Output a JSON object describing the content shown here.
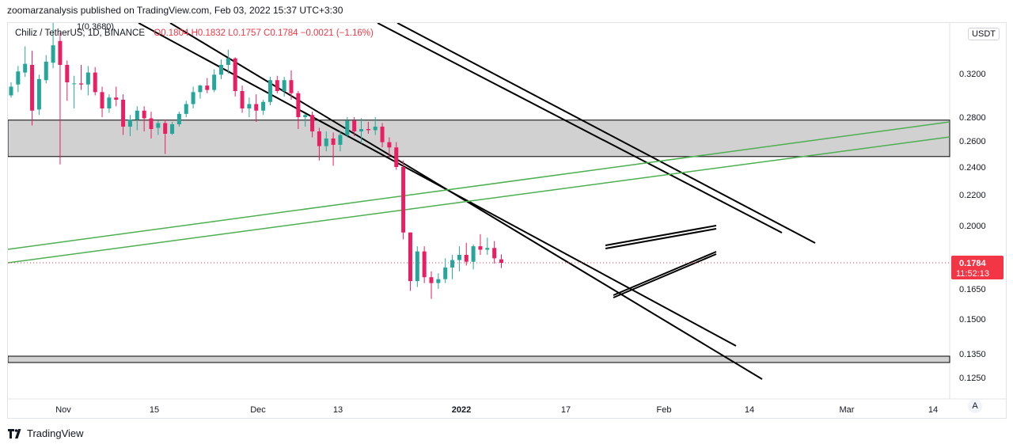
{
  "header": {
    "publish_line": "zoomarzanalysis published on TradingView.com, Feb 03, 2022 15:37 UTC+3:30"
  },
  "legend": {
    "symbol": "Chiliz / TetherUS, 1D, BINANCE",
    "open": "O0.1804",
    "high": "H0.1832",
    "low": "L0.1757",
    "close": "C0.1784",
    "change": "−0.0021 (−1.16%)"
  },
  "marker_label": "1(0.3680)",
  "currency_button": "USDT",
  "axis_mode": "A",
  "footer": {
    "brand": "TradingView"
  },
  "colors": {
    "up": "#26a69a",
    "down": "#e91e63",
    "zone": "#d1d1d1",
    "trend_black": "#000000",
    "trend_green": "#4caf50",
    "price_tag": "#f23645"
  },
  "chart_data": {
    "type": "candlestick",
    "y_axis": {
      "labels": [
        "0.3200",
        "0.2800",
        "0.2600",
        "0.2400",
        "0.2200",
        "0.2000",
        "0.1650",
        "0.1500",
        "0.1350",
        "0.1250"
      ],
      "top_label": "0"
    },
    "x_axis": {
      "labels": [
        "Nov",
        "15",
        "Dec",
        "13",
        "2022",
        "17",
        "Feb",
        "14",
        "Mar",
        "14"
      ]
    },
    "last_price": {
      "value": "0.1784",
      "countdown": "11:52:13"
    },
    "zones": [
      {
        "from": 0.248,
        "to": 0.2775
      },
      {
        "from": 0.1315,
        "to": 0.134
      }
    ],
    "candles": [
      {
        "o": 0.3,
        "h": 0.312,
        "l": 0.298,
        "c": 0.308
      },
      {
        "o": 0.31,
        "h": 0.327,
        "l": 0.303,
        "c": 0.322
      },
      {
        "o": 0.321,
        "h": 0.345,
        "l": 0.317,
        "c": 0.329
      },
      {
        "o": 0.328,
        "h": 0.341,
        "l": 0.273,
        "c": 0.286
      },
      {
        "o": 0.287,
        "h": 0.319,
        "l": 0.282,
        "c": 0.315
      },
      {
        "o": 0.314,
        "h": 0.337,
        "l": 0.311,
        "c": 0.331
      },
      {
        "o": 0.33,
        "h": 0.368,
        "l": 0.325,
        "c": 0.346
      },
      {
        "o": 0.35,
        "h": 0.358,
        "l": 0.242,
        "c": 0.328
      },
      {
        "o": 0.328,
        "h": 0.332,
        "l": 0.295,
        "c": 0.312
      },
      {
        "o": 0.311,
        "h": 0.318,
        "l": 0.288,
        "c": 0.311
      },
      {
        "o": 0.311,
        "h": 0.328,
        "l": 0.305,
        "c": 0.31
      },
      {
        "o": 0.31,
        "h": 0.327,
        "l": 0.3,
        "c": 0.321
      },
      {
        "o": 0.321,
        "h": 0.326,
        "l": 0.3,
        "c": 0.303
      },
      {
        "o": 0.303,
        "h": 0.308,
        "l": 0.28,
        "c": 0.288
      },
      {
        "o": 0.288,
        "h": 0.301,
        "l": 0.284,
        "c": 0.298
      },
      {
        "o": 0.298,
        "h": 0.308,
        "l": 0.29,
        "c": 0.296
      },
      {
        "o": 0.296,
        "h": 0.301,
        "l": 0.265,
        "c": 0.272
      },
      {
        "o": 0.272,
        "h": 0.282,
        "l": 0.264,
        "c": 0.278
      },
      {
        "o": 0.278,
        "h": 0.29,
        "l": 0.269,
        "c": 0.286
      },
      {
        "o": 0.286,
        "h": 0.29,
        "l": 0.268,
        "c": 0.279
      },
      {
        "o": 0.279,
        "h": 0.285,
        "l": 0.262,
        "c": 0.27
      },
      {
        "o": 0.271,
        "h": 0.277,
        "l": 0.265,
        "c": 0.275
      },
      {
        "o": 0.275,
        "h": 0.278,
        "l": 0.25,
        "c": 0.266
      },
      {
        "o": 0.266,
        "h": 0.276,
        "l": 0.265,
        "c": 0.274
      },
      {
        "o": 0.274,
        "h": 0.285,
        "l": 0.272,
        "c": 0.283
      },
      {
        "o": 0.283,
        "h": 0.295,
        "l": 0.28,
        "c": 0.292
      },
      {
        "o": 0.292,
        "h": 0.308,
        "l": 0.288,
        "c": 0.303
      },
      {
        "o": 0.303,
        "h": 0.31,
        "l": 0.297,
        "c": 0.309
      },
      {
        "o": 0.309,
        "h": 0.316,
        "l": 0.302,
        "c": 0.305
      },
      {
        "o": 0.305,
        "h": 0.324,
        "l": 0.303,
        "c": 0.319
      },
      {
        "o": 0.319,
        "h": 0.333,
        "l": 0.315,
        "c": 0.328
      },
      {
        "o": 0.328,
        "h": 0.342,
        "l": 0.32,
        "c": 0.334
      },
      {
        "o": 0.334,
        "h": 0.335,
        "l": 0.299,
        "c": 0.304
      },
      {
        "o": 0.304,
        "h": 0.309,
        "l": 0.284,
        "c": 0.288
      },
      {
        "o": 0.288,
        "h": 0.298,
        "l": 0.28,
        "c": 0.292
      },
      {
        "o": 0.292,
        "h": 0.301,
        "l": 0.276,
        "c": 0.286
      },
      {
        "o": 0.286,
        "h": 0.296,
        "l": 0.282,
        "c": 0.294
      },
      {
        "o": 0.294,
        "h": 0.317,
        "l": 0.291,
        "c": 0.314
      },
      {
        "o": 0.314,
        "h": 0.318,
        "l": 0.302,
        "c": 0.304
      },
      {
        "o": 0.304,
        "h": 0.317,
        "l": 0.299,
        "c": 0.314
      },
      {
        "o": 0.314,
        "h": 0.323,
        "l": 0.296,
        "c": 0.302
      },
      {
        "o": 0.302,
        "h": 0.304,
        "l": 0.27,
        "c": 0.28
      },
      {
        "o": 0.28,
        "h": 0.283,
        "l": 0.272,
        "c": 0.282
      },
      {
        "o": 0.282,
        "h": 0.285,
        "l": 0.263,
        "c": 0.268
      },
      {
        "o": 0.268,
        "h": 0.271,
        "l": 0.245,
        "c": 0.256
      },
      {
        "o": 0.256,
        "h": 0.268,
        "l": 0.252,
        "c": 0.262
      },
      {
        "o": 0.262,
        "h": 0.267,
        "l": 0.241,
        "c": 0.257
      },
      {
        "o": 0.257,
        "h": 0.268,
        "l": 0.252,
        "c": 0.265
      },
      {
        "o": 0.265,
        "h": 0.28,
        "l": 0.263,
        "c": 0.277
      },
      {
        "o": 0.277,
        "h": 0.28,
        "l": 0.264,
        "c": 0.268
      },
      {
        "o": 0.268,
        "h": 0.279,
        "l": 0.258,
        "c": 0.27
      },
      {
        "o": 0.27,
        "h": 0.276,
        "l": 0.266,
        "c": 0.269
      },
      {
        "o": 0.269,
        "h": 0.28,
        "l": 0.265,
        "c": 0.272
      },
      {
        "o": 0.272,
        "h": 0.275,
        "l": 0.255,
        "c": 0.259
      },
      {
        "o": 0.259,
        "h": 0.263,
        "l": 0.247,
        "c": 0.255
      },
      {
        "o": 0.255,
        "h": 0.259,
        "l": 0.238,
        "c": 0.24
      },
      {
        "o": 0.24,
        "h": 0.245,
        "l": 0.192,
        "c": 0.196
      },
      {
        "o": 0.196,
        "h": 0.196,
        "l": 0.164,
        "c": 0.169
      },
      {
        "o": 0.169,
        "h": 0.188,
        "l": 0.166,
        "c": 0.185
      },
      {
        "o": 0.185,
        "h": 0.188,
        "l": 0.168,
        "c": 0.171
      },
      {
        "o": 0.171,
        "h": 0.174,
        "l": 0.16,
        "c": 0.168
      },
      {
        "o": 0.168,
        "h": 0.173,
        "l": 0.165,
        "c": 0.17
      },
      {
        "o": 0.17,
        "h": 0.181,
        "l": 0.168,
        "c": 0.176
      },
      {
        "o": 0.176,
        "h": 0.183,
        "l": 0.17,
        "c": 0.18
      },
      {
        "o": 0.18,
        "h": 0.188,
        "l": 0.174,
        "c": 0.183
      },
      {
        "o": 0.183,
        "h": 0.19,
        "l": 0.177,
        "c": 0.179
      },
      {
        "o": 0.179,
        "h": 0.189,
        "l": 0.175,
        "c": 0.188
      },
      {
        "o": 0.188,
        "h": 0.195,
        "l": 0.183,
        "c": 0.186
      },
      {
        "o": 0.186,
        "h": 0.193,
        "l": 0.183,
        "c": 0.187
      },
      {
        "o": 0.187,
        "h": 0.191,
        "l": 0.178,
        "c": 0.181
      },
      {
        "o": 0.1804,
        "h": 0.1832,
        "l": 0.1757,
        "c": 0.1784
      }
    ]
  }
}
